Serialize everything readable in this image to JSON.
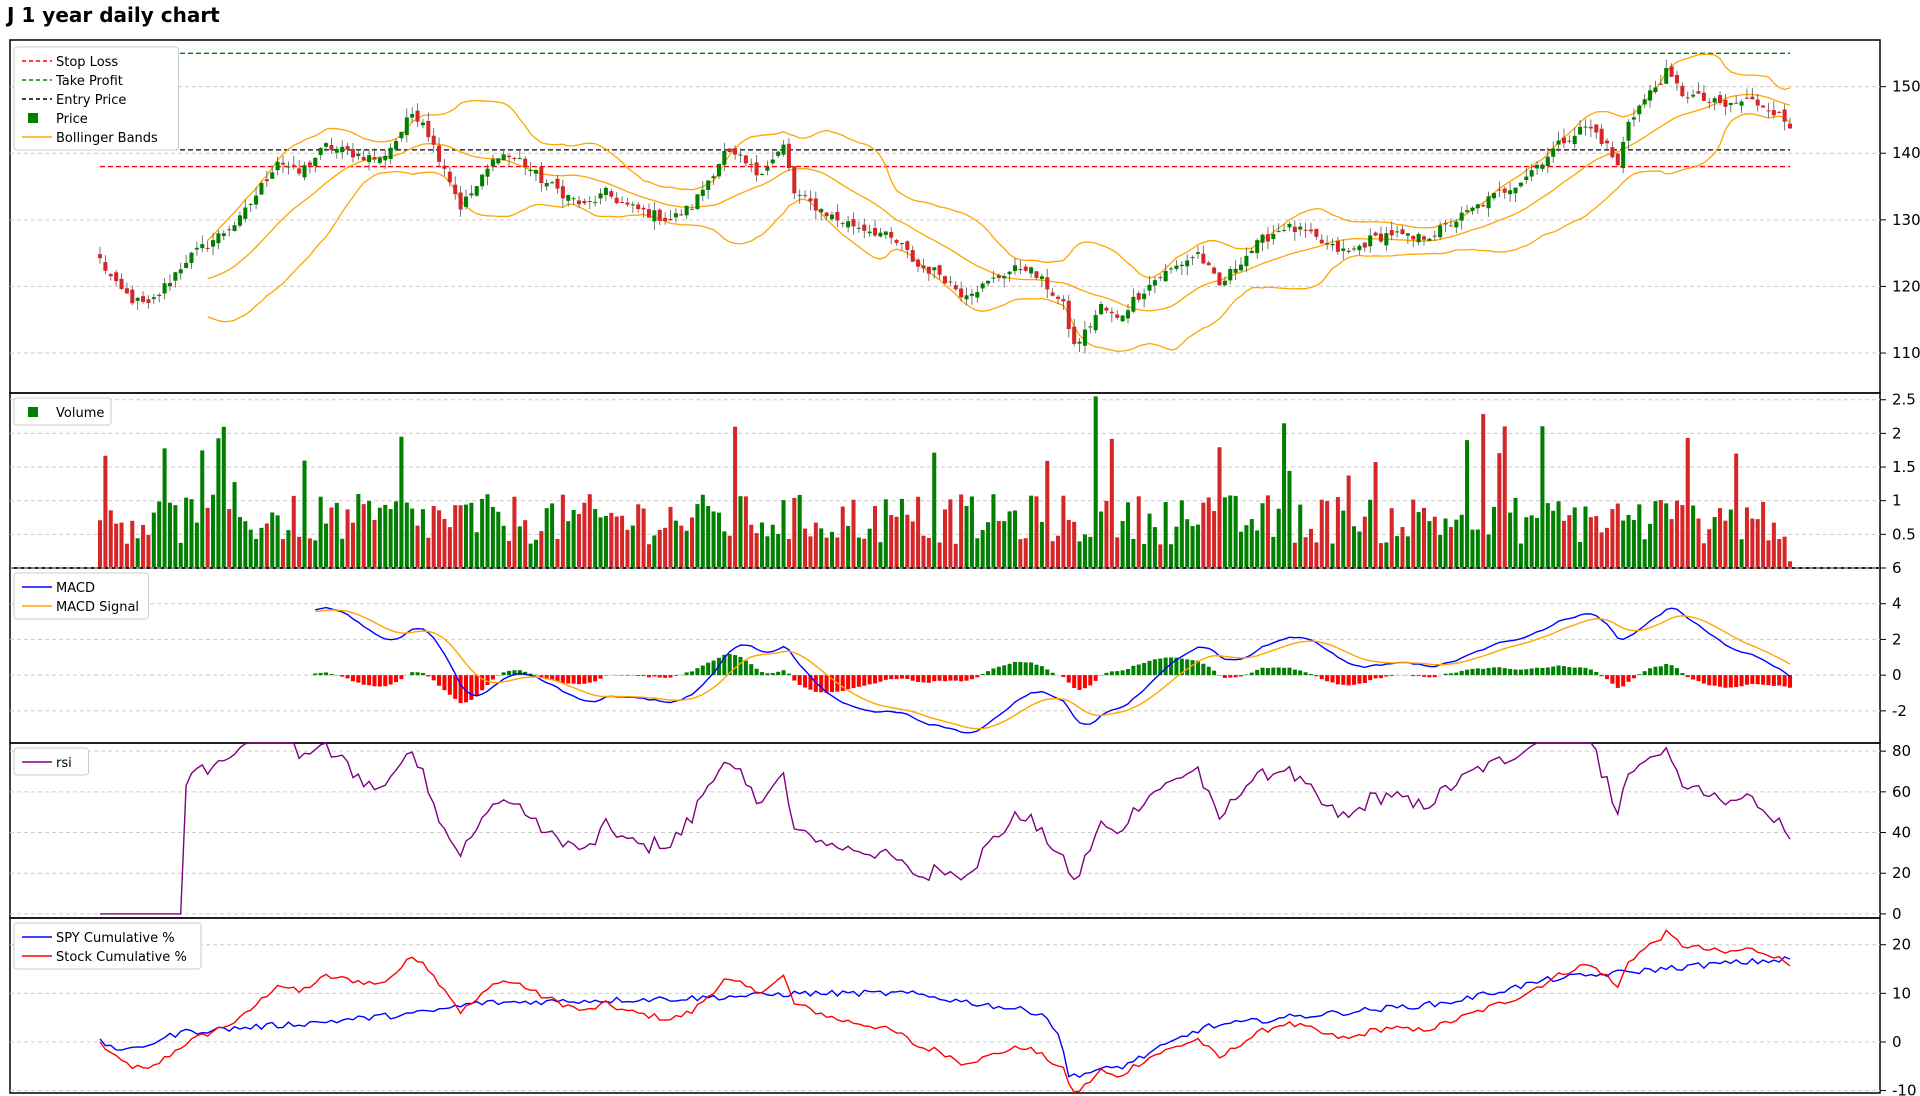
{
  "title": "J 1 year daily chart",
  "colors": {
    "up": "#007f00",
    "down": "#d62728",
    "bollinger": "#ffa500",
    "stop_loss": "#ff0000",
    "take_profit": "#008000",
    "entry": "#000000",
    "macd": "#0000ff",
    "macd_signal": "#ffa500",
    "hist_pos": "#008000",
    "hist_neg": "#ff0000",
    "rsi": "#800080",
    "spy": "#0000ff",
    "stock": "#ff0000"
  },
  "chart_data": [
    {
      "type": "candlestick",
      "ylim": [
        104,
        157
      ],
      "yticks": [
        110,
        120,
        130,
        140,
        150
      ],
      "grid": true,
      "legend_placement": "top-left",
      "legend": [
        "Stop Loss",
        "Take Profit",
        "Entry Price",
        "Price",
        "Bollinger Bands"
      ],
      "stop_loss": 138,
      "take_profit": 155,
      "entry_price": 140.5,
      "close_anchors": [
        [
          0,
          124
        ],
        [
          3,
          120
        ],
        [
          6,
          118
        ],
        [
          9,
          117
        ],
        [
          12,
          120
        ],
        [
          16,
          124
        ],
        [
          21,
          127
        ],
        [
          26,
          130
        ],
        [
          30,
          135
        ],
        [
          33,
          139
        ],
        [
          37,
          137
        ],
        [
          42,
          141
        ],
        [
          47,
          140
        ],
        [
          52,
          139
        ],
        [
          55,
          142
        ],
        [
          58,
          146
        ],
        [
          60,
          145
        ],
        [
          62,
          141
        ],
        [
          64,
          138
        ],
        [
          67,
          132
        ],
        [
          70,
          135
        ],
        [
          74,
          140
        ],
        [
          78,
          139
        ],
        [
          82,
          136
        ],
        [
          86,
          134
        ],
        [
          90,
          132
        ],
        [
          94,
          134
        ],
        [
          98,
          132
        ],
        [
          102,
          131
        ],
        [
          106,
          130
        ],
        [
          110,
          132
        ],
        [
          113,
          136
        ],
        [
          116,
          140
        ],
        [
          119,
          139
        ],
        [
          122,
          137
        ],
        [
          125,
          139
        ],
        [
          127,
          141
        ],
        [
          129,
          134
        ],
        [
          133,
          132
        ],
        [
          137,
          130
        ],
        [
          141,
          129
        ],
        [
          145,
          128
        ],
        [
          149,
          126
        ],
        [
          152,
          123
        ],
        [
          156,
          122
        ],
        [
          160,
          119
        ],
        [
          164,
          120
        ],
        [
          168,
          122
        ],
        [
          172,
          123
        ],
        [
          176,
          120
        ],
        [
          179,
          117
        ],
        [
          181,
          111
        ],
        [
          183,
          113
        ],
        [
          186,
          117
        ],
        [
          189,
          115
        ],
        [
          192,
          118
        ],
        [
          196,
          121
        ],
        [
          200,
          123
        ],
        [
          204,
          125
        ],
        [
          208,
          120
        ],
        [
          212,
          124
        ],
        [
          216,
          127
        ],
        [
          220,
          129
        ],
        [
          224,
          128
        ],
        [
          228,
          126
        ],
        [
          232,
          125
        ],
        [
          236,
          127
        ],
        [
          240,
          128
        ],
        [
          244,
          127
        ],
        [
          248,
          128
        ],
        [
          252,
          130
        ],
        [
          256,
          132
        ],
        [
          260,
          134
        ],
        [
          264,
          136
        ],
        [
          268,
          139
        ],
        [
          272,
          142
        ],
        [
          276,
          144
        ],
        [
          278,
          143
        ],
        [
          280,
          141
        ],
        [
          282,
          138
        ],
        [
          284,
          145
        ],
        [
          288,
          149
        ],
        [
          291,
          152
        ],
        [
          294,
          149
        ],
        [
          298,
          148
        ],
        [
          302,
          147
        ],
        [
          306,
          148
        ],
        [
          310,
          147
        ],
        [
          314,
          144
        ]
      ],
      "bollinger_start": 20,
      "bollinger_window": 20,
      "volume_max": 2.6,
      "volume_yticks": [
        0.5,
        1.0,
        1.5,
        2.0,
        2.5
      ],
      "volume_legend": "Volume"
    },
    {
      "type": "line",
      "name_note": "MACD panel",
      "ylim": [
        -3.8,
        6
      ],
      "yticks": [
        -2,
        0,
        2,
        4,
        6
      ],
      "series": [
        {
          "name": "MACD"
        },
        {
          "name": "MACD Signal"
        }
      ],
      "macd_start": 40
    },
    {
      "type": "line",
      "ylim": [
        -2,
        84
      ],
      "yticks": [
        0,
        20,
        40,
        60,
        80
      ],
      "series": [
        {
          "name": "rsi"
        }
      ],
      "rsi_start": 16
    },
    {
      "type": "line",
      "ylim": [
        -10.5,
        25.5
      ],
      "yticks": [
        -10,
        0,
        10,
        20
      ],
      "series": [
        {
          "name": "SPY Cumulative %"
        },
        {
          "name": "Stock Cumulative %"
        }
      ]
    }
  ]
}
